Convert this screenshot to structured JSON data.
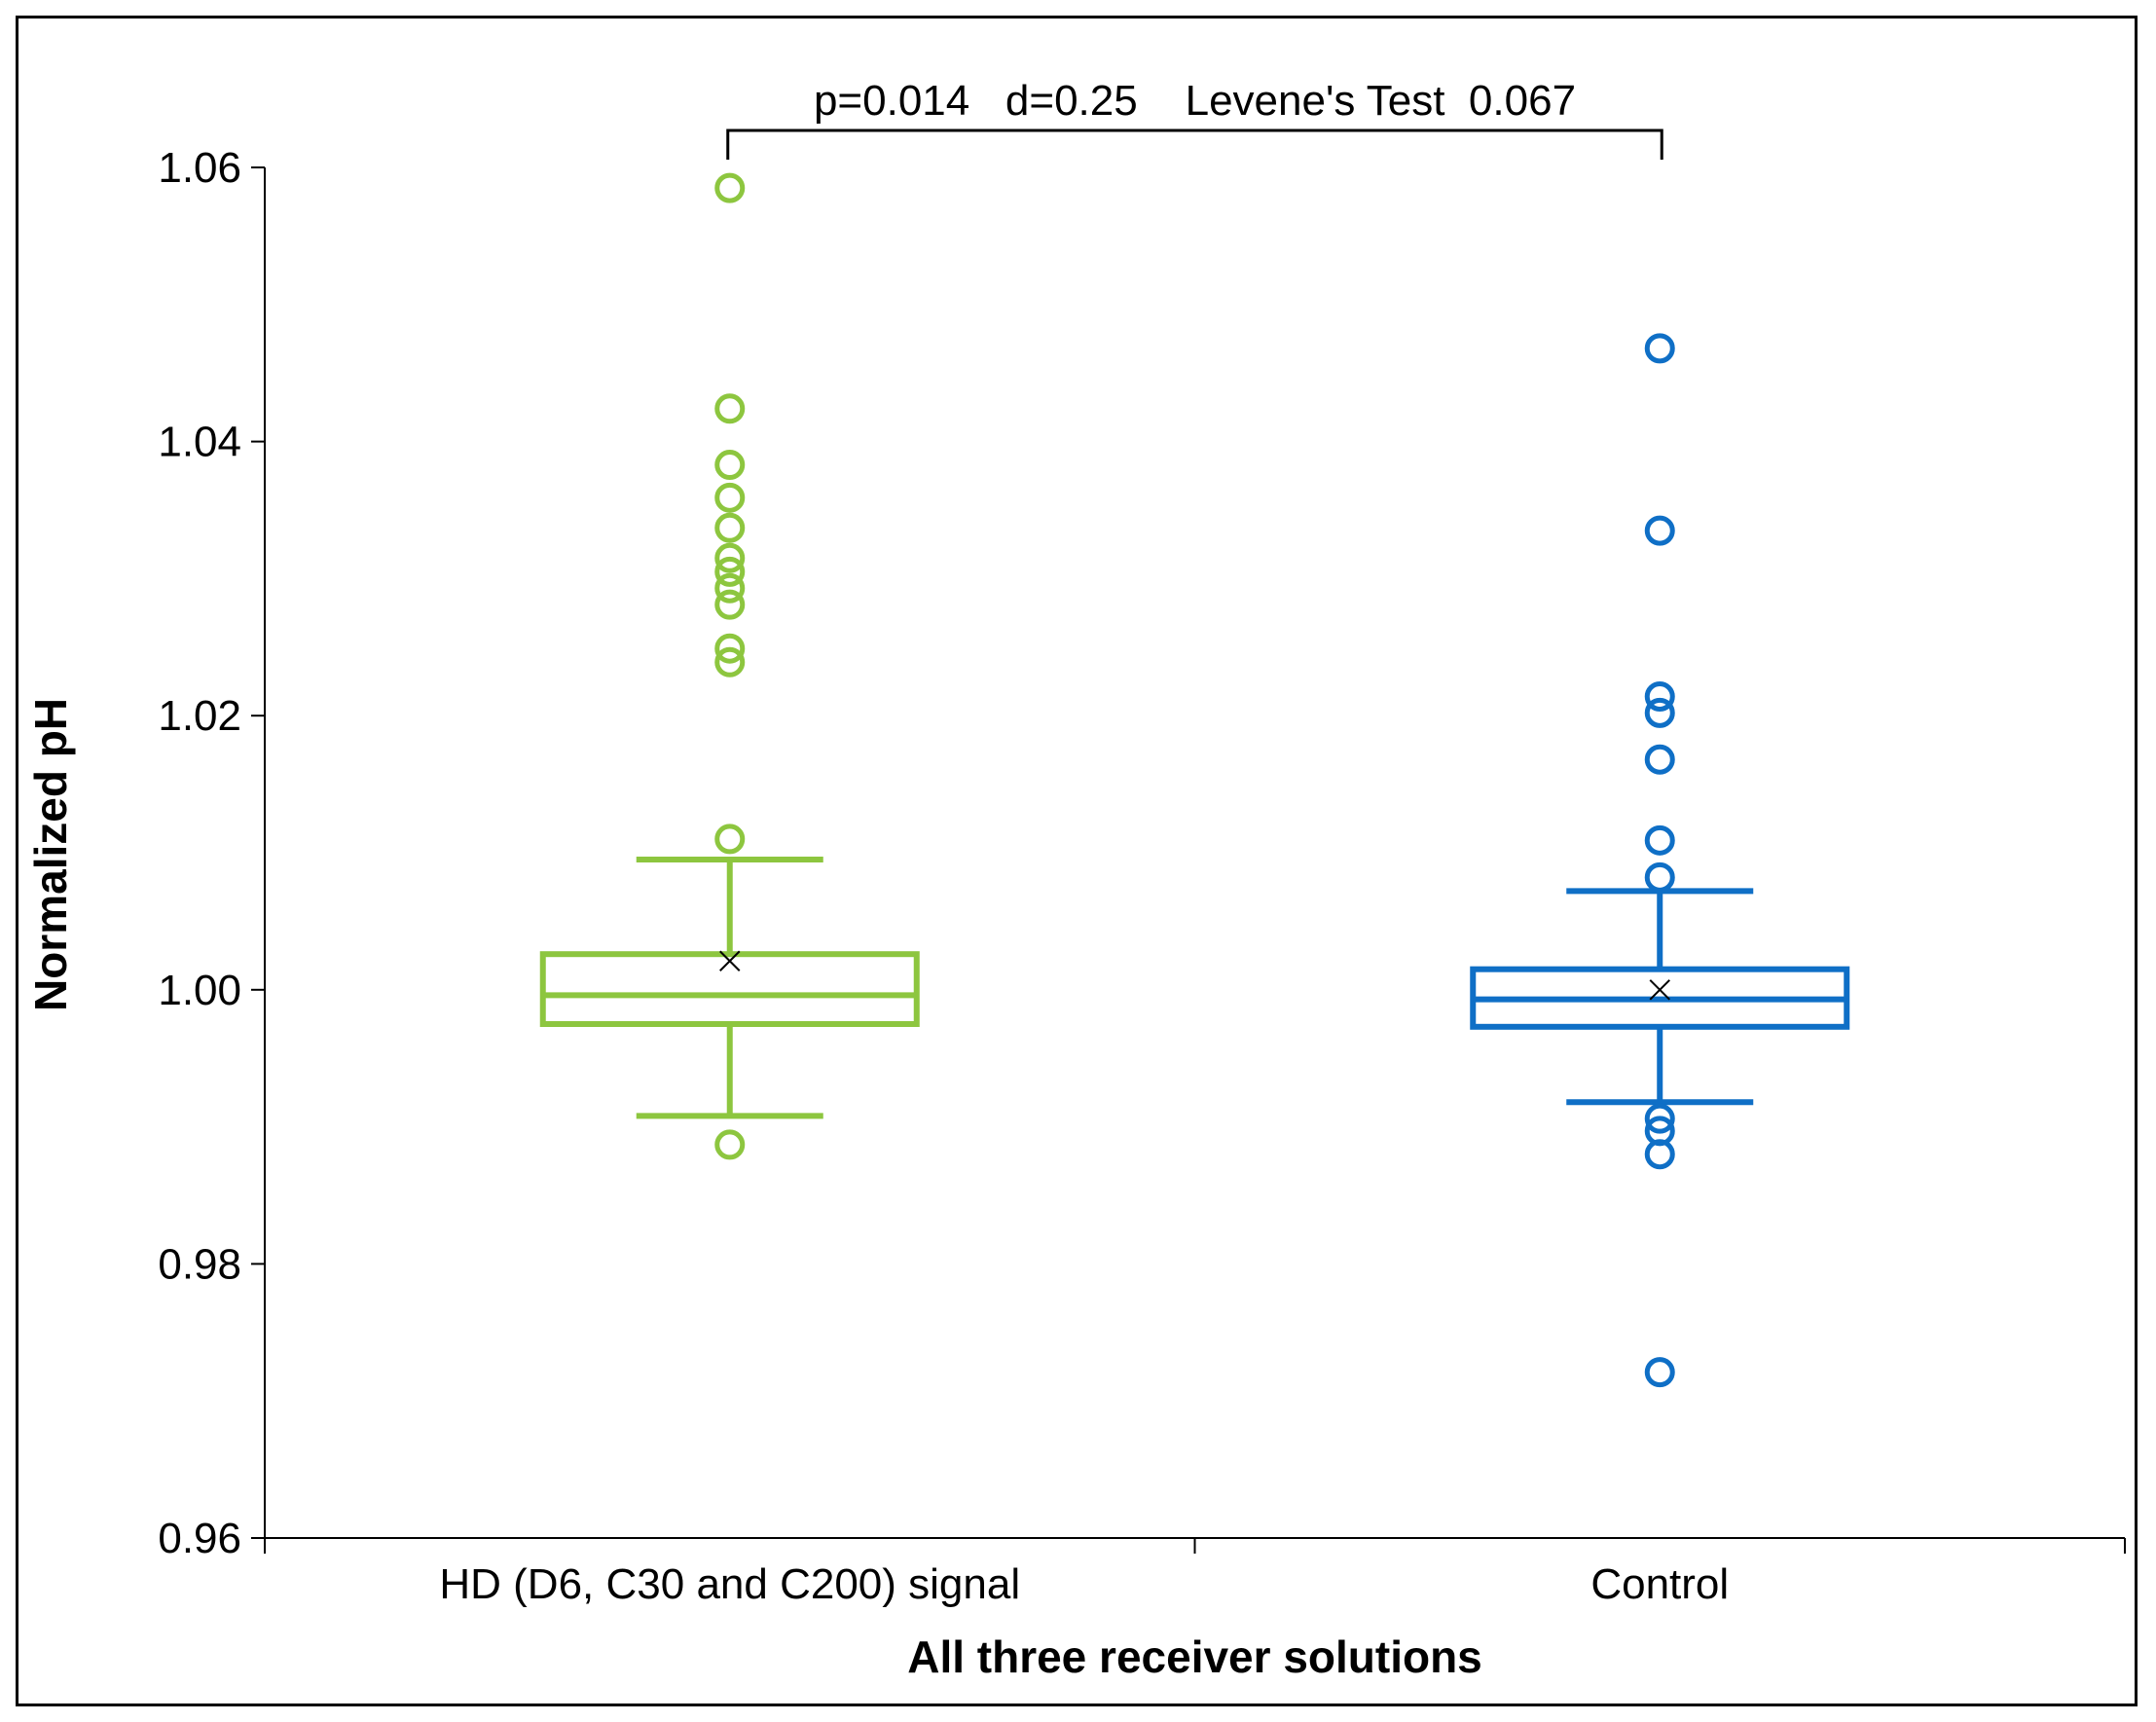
{
  "chart_data": {
    "type": "boxplot",
    "xlabel": "All three receiver solutions",
    "ylabel": "Normalized pH",
    "ylim": [
      0.96,
      1.06
    ],
    "yticks": [
      0.96,
      0.98,
      1.0,
      1.02,
      1.04,
      1.06
    ],
    "ytick_labels": [
      "0.96",
      "0.98",
      "1.00",
      "1.02",
      "1.04",
      "1.06"
    ],
    "grid": false,
    "legend": "none",
    "categories": [
      "HD (D6, C30 and C200) signal",
      "Control"
    ],
    "series": [
      {
        "name": "HD (D6, C30 and C200) signal",
        "color": "#8DC63F",
        "whisker_low": 0.9908,
        "q1": 0.9975,
        "median": 0.9996,
        "q3": 1.0026,
        "whisker_high": 1.0095,
        "mean": 1.0021,
        "outliers": [
          1.0585,
          1.0424,
          1.0383,
          1.0359,
          1.0337,
          1.0315,
          1.0305,
          1.0293,
          1.0281,
          1.0249,
          1.0239,
          1.011,
          0.9887
        ]
      },
      {
        "name": "Control",
        "color": "#0F6FC6",
        "whisker_low": 0.9918,
        "q1": 0.9973,
        "median": 0.9993,
        "q3": 1.0015,
        "whisker_high": 1.0072,
        "mean": 1.0,
        "outliers": [
          1.0468,
          1.0335,
          1.0214,
          1.0202,
          1.0168,
          1.0109,
          1.0082,
          0.9906,
          0.9897,
          0.988,
          0.9721
        ]
      }
    ],
    "annotation": {
      "text": "p=0.014   d=0.25    Levene's Test  0.067",
      "between": [
        "HD (D6, C30 and C200) signal",
        "Control"
      ]
    }
  }
}
